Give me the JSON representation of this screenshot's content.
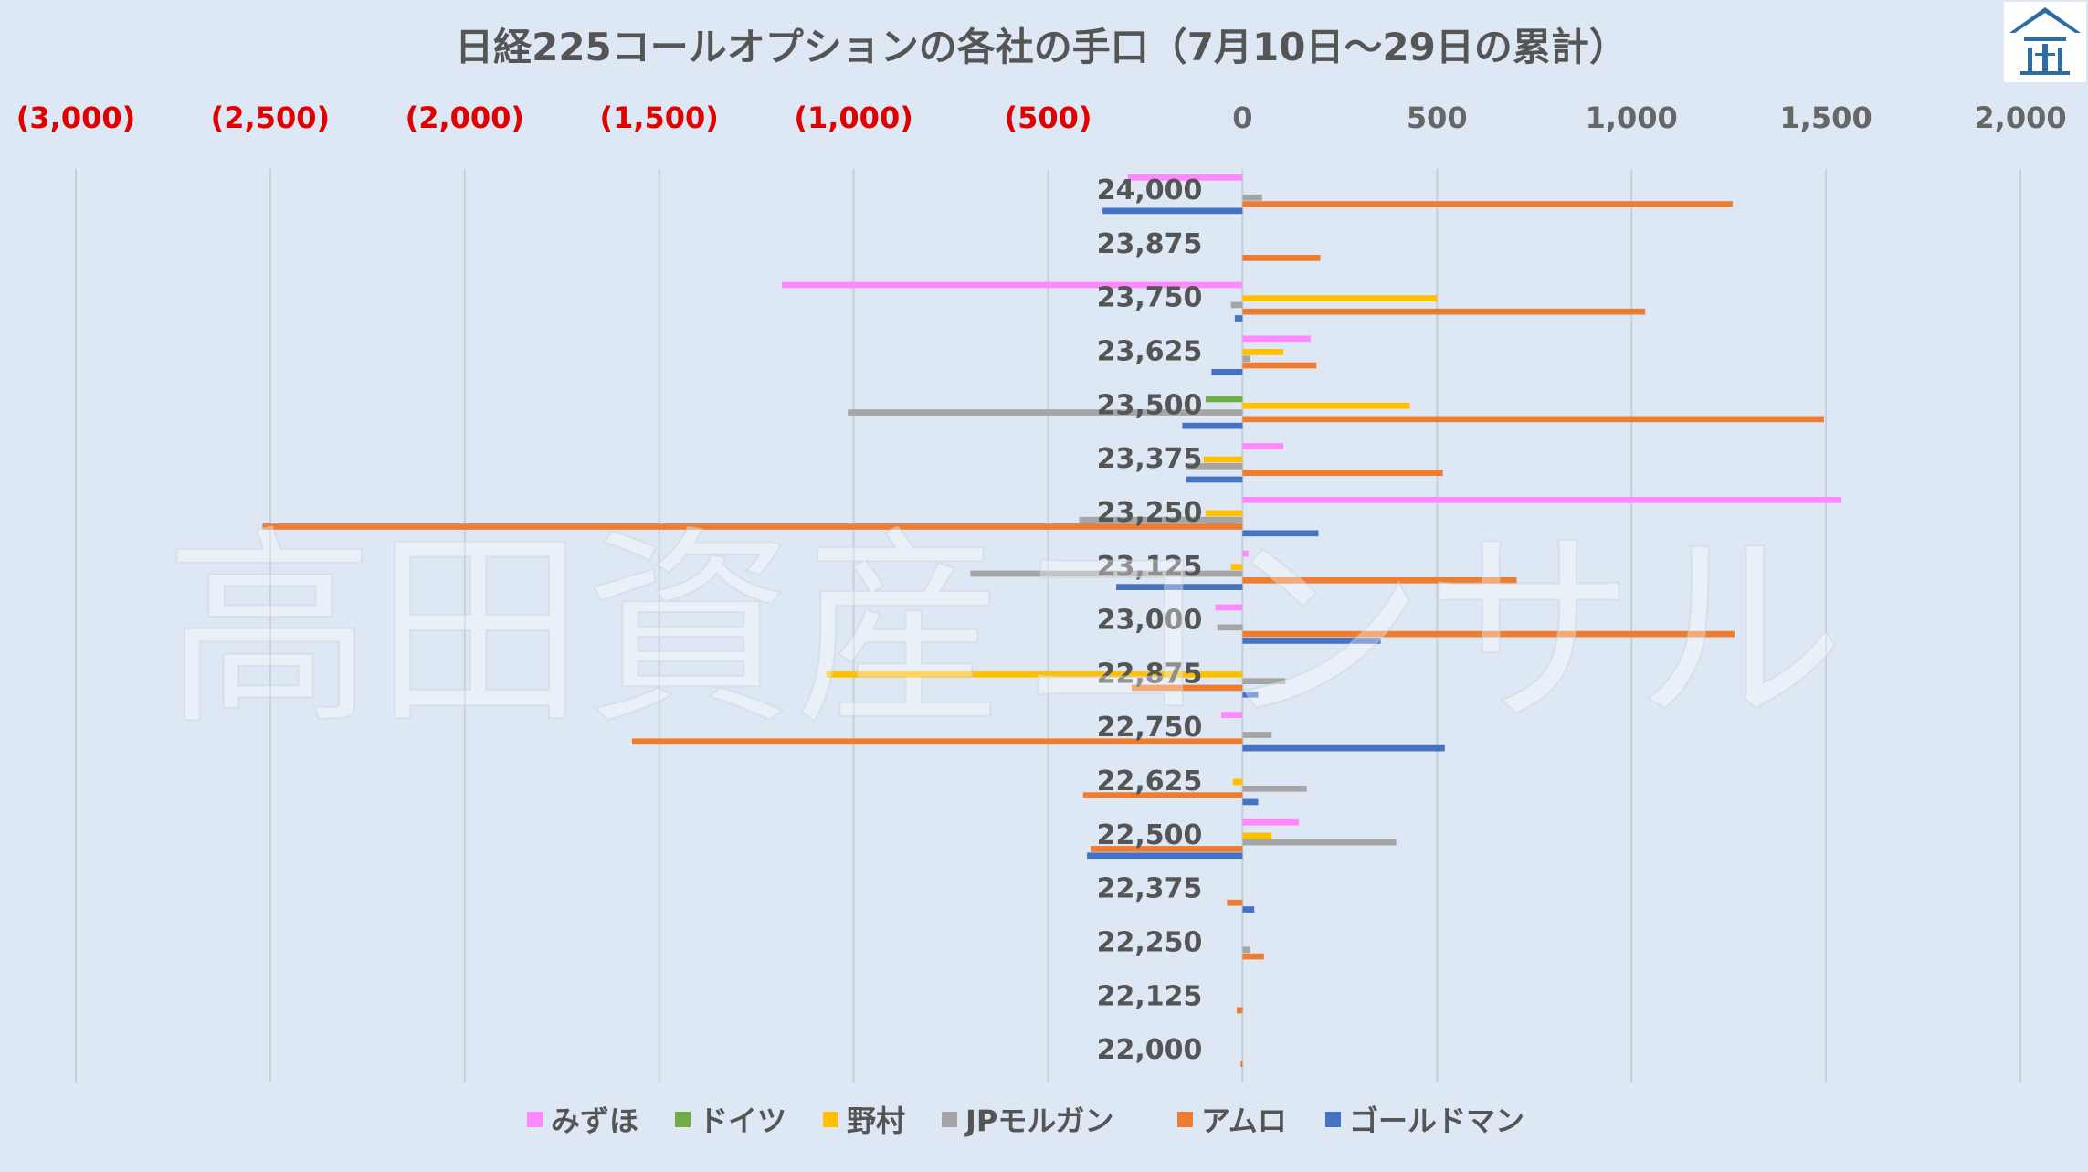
{
  "chart_data": {
    "type": "bar",
    "orientation": "horizontal",
    "title": "日経225コールオプションの各社の手口（7月10日～29日の累計）",
    "watermark": "高田資産コンサル",
    "xlim": [
      -3000,
      2000
    ],
    "x_ticks": [
      {
        "value": -3000,
        "label": "(3,000)"
      },
      {
        "value": -2500,
        "label": "(2,500)"
      },
      {
        "value": -2000,
        "label": "(2,000)"
      },
      {
        "value": -1500,
        "label": "(1,500)"
      },
      {
        "value": -1000,
        "label": "(1,000)"
      },
      {
        "value": -500,
        "label": "(500)"
      },
      {
        "value": 0,
        "label": "0"
      },
      {
        "value": 500,
        "label": "500"
      },
      {
        "value": 1000,
        "label": "1,000"
      },
      {
        "value": 1500,
        "label": "1,500"
      },
      {
        "value": 2000,
        "label": "2,000"
      }
    ],
    "negative_tick_color": "#e00000",
    "grid": true,
    "legend_position": "bottom",
    "categories": [
      "24,000",
      "23,875",
      "23,750",
      "23,625",
      "23,500",
      "23,375",
      "23,250",
      "23,125",
      "23,000",
      "22,875",
      "22,750",
      "22,625",
      "22,500",
      "22,375",
      "22,250",
      "22,125",
      "22,000"
    ],
    "series": [
      {
        "name": "みずほ",
        "color": "#ff88ff",
        "values": [
          -295,
          0,
          -1185,
          175,
          0,
          105,
          1540,
          15,
          -70,
          0,
          -55,
          0,
          145,
          0,
          0,
          0,
          0
        ]
      },
      {
        "name": "ドイツ",
        "color": "#70ad47",
        "values": [
          0,
          0,
          0,
          0,
          -95,
          0,
          0,
          0,
          0,
          0,
          0,
          0,
          0,
          0,
          0,
          0,
          0
        ]
      },
      {
        "name": "野村",
        "color": "#ffc000",
        "values": [
          0,
          0,
          500,
          105,
          430,
          -100,
          -95,
          -30,
          0,
          -1070,
          0,
          -25,
          75,
          0,
          0,
          0,
          0
        ]
      },
      {
        "name": "JPモルガン",
        "color": "#a5a5a5",
        "values": [
          50,
          0,
          -30,
          20,
          -1015,
          -145,
          -420,
          -700,
          -65,
          110,
          75,
          165,
          395,
          0,
          20,
          0,
          0
        ]
      },
      {
        "name": "アムロ",
        "color": "#ed7d31",
        "values": [
          1260,
          200,
          1035,
          190,
          1495,
          515,
          -2520,
          705,
          1265,
          -285,
          -1570,
          -410,
          -390,
          -40,
          55,
          -15,
          -5
        ]
      },
      {
        "name": "ゴールドマン",
        "color": "#4472c4",
        "values": [
          -360,
          0,
          -20,
          -80,
          -155,
          -145,
          195,
          -325,
          355,
          40,
          520,
          40,
          -400,
          30,
          0,
          0,
          0
        ]
      }
    ]
  }
}
